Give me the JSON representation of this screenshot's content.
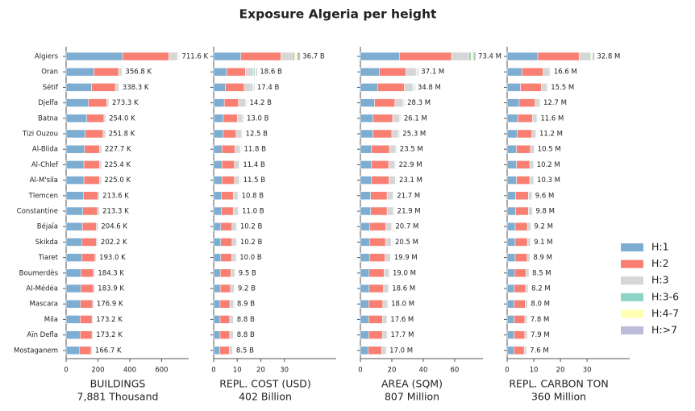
{
  "title": "Exposure Algeria per height",
  "categories": [
    "Algiers",
    "Oran",
    "Sétif",
    "Djelfa",
    "Batna",
    "Tizi Ouzou",
    "Al-Blida",
    "Al-Chlef",
    "Al-M'sila",
    "Tlemcen",
    "Constantine",
    "Béjaïa",
    "Skikda",
    "Tiaret",
    "Boumerdès",
    "Al-Médéa",
    "Mascara",
    "Mila",
    "Aïn Defla",
    "Mostaganem"
  ],
  "series": [
    {
      "name": "H:1",
      "color": "#7eadd2"
    },
    {
      "name": "H:2",
      "color": "#f97f72"
    },
    {
      "name": "H:3",
      "color": "#d6d6d6"
    },
    {
      "name": "H:3-6",
      "color": "#8dd3c7"
    },
    {
      "name": "H:4-7",
      "color": "#ffffb3"
    },
    {
      "name": "H:>7",
      "color": "#bebada"
    }
  ],
  "legend": "right",
  "chart_data": [
    {
      "type": "bar",
      "orientation": "horizontal",
      "xlabel": "BUILDINGS",
      "summary": "7,881 Thousand",
      "xlim": [
        0,
        770
      ],
      "xticks": [
        0,
        200,
        400,
        600
      ],
      "series": [
        {
          "values": [
            355,
            175,
            160,
            140,
            130,
            120,
            115,
            112,
            112,
            108,
            105,
            102,
            100,
            98,
            92,
            92,
            90,
            88,
            88,
            85
          ]
        },
        {
          "values": [
            290,
            155,
            150,
            115,
            108,
            112,
            95,
            98,
            98,
            92,
            92,
            88,
            90,
            84,
            80,
            80,
            76,
            75,
            75,
            72
          ]
        },
        {
          "values": [
            55,
            22,
            22,
            14,
            12,
            16,
            14,
            12,
            12,
            10,
            13,
            12,
            9,
            8,
            9,
            9,
            8,
            7,
            7,
            7
          ]
        },
        {
          "values": [
            4,
            2,
            2.5,
            2,
            2,
            2,
            1.5,
            1.5,
            1.5,
            1.5,
            1.5,
            1.2,
            1.5,
            1.5,
            1.5,
            1.3,
            1.3,
            1.5,
            1.5,
            1.3
          ]
        },
        {
          "values": [
            4,
            2,
            2.5,
            1.5,
            1.5,
            1.3,
            1.5,
            1.4,
            1,
            1.5,
            1.3,
            1,
            1.2,
            1,
            1.3,
            1.1,
            1.1,
            1.2,
            1.2,
            1
          ]
        },
        {
          "values": [
            3.6,
            0.8,
            1.3,
            0.8,
            0.5,
            0.5,
            0.7,
            0.5,
            0.5,
            0.6,
            0.5,
            0.4,
            0.5,
            0.5,
            0.5,
            0.5,
            0.5,
            0.5,
            0.5,
            0.4
          ]
        }
      ],
      "totals": [
        711.6,
        356.8,
        338.3,
        273.3,
        254.0,
        251.8,
        227.7,
        225.4,
        225.0,
        213.6,
        213.3,
        204.6,
        202.2,
        193.0,
        184.3,
        183.9,
        176.9,
        173.2,
        173.2,
        166.7
      ],
      "total_labels": [
        "711.6 K",
        "356.8 K",
        "338.3 K",
        "273.3 K",
        "254.0 K",
        "251.8 K",
        "227.7 K",
        "225.4 K",
        "225.0 K",
        "213.6 K",
        "213.3 K",
        "204.6 K",
        "202.2 K",
        "193.0 K",
        "184.3 K",
        "183.9 K",
        "176.9 K",
        "173.2 K",
        "173.2 K",
        "166.7 K"
      ]
    },
    {
      "type": "bar",
      "orientation": "horizontal",
      "xlabel": "REPL. COST (USD)",
      "summary": "402 Billion",
      "xlim": [
        0,
        52
      ],
      "xticks": [
        0,
        10,
        20,
        30
      ],
      "series": [
        {
          "values": [
            11.5,
            5.5,
            5,
            4.5,
            4,
            4,
            3.5,
            3.5,
            3.5,
            3.3,
            3.3,
            3,
            3,
            3,
            2.8,
            2.8,
            2.7,
            2.7,
            2.7,
            2.6
          ]
        },
        {
          "values": [
            17,
            8,
            8,
            6,
            6,
            5.5,
            5.5,
            5.3,
            5.3,
            5,
            5,
            4.8,
            4.8,
            4.7,
            4.5,
            4.3,
            4.2,
            4.1,
            4.1,
            4
          ]
        },
        {
          "values": [
            5,
            3.5,
            3,
            3,
            2.3,
            2.3,
            2.2,
            2,
            2.1,
            2,
            2.1,
            1.9,
            1.9,
            1.8,
            1.7,
            1.6,
            1.5,
            1.5,
            1.5,
            1.4
          ]
        },
        {
          "values": [
            0.8,
            0.5,
            0.5,
            0.3,
            0.3,
            0.3,
            0.2,
            0.2,
            0.2,
            0.2,
            0.2,
            0.2,
            0.2,
            0.2,
            0.2,
            0.2,
            0.2,
            0.2,
            0.2,
            0.2
          ]
        },
        {
          "values": [
            1.2,
            0.6,
            0.5,
            0.2,
            0.2,
            0.2,
            0.2,
            0.2,
            0.2,
            0.1,
            0.2,
            0.1,
            0.1,
            0.1,
            0.1,
            0.1,
            0.1,
            0.1,
            0.1,
            0.1
          ]
        },
        {
          "values": [
            1.2,
            0.5,
            0.4,
            0.2,
            0.2,
            0.2,
            0.2,
            0.2,
            0.2,
            0.2,
            0.2,
            0.2,
            0.2,
            0.2,
            0.2,
            0.2,
            0.2,
            0.2,
            0.2,
            0.2
          ]
        }
      ],
      "totals": [
        36.7,
        18.6,
        17.4,
        14.2,
        13.0,
        12.5,
        11.8,
        11.4,
        11.5,
        10.8,
        11.0,
        10.2,
        10.2,
        10.0,
        9.5,
        9.2,
        8.9,
        8.8,
        8.8,
        8.5
      ],
      "total_labels": [
        "36.7 B",
        "18.6 B",
        "17.4 B",
        "14.2 B",
        "13.0 B",
        "12.5 B",
        "11.8 B",
        "11.4 B",
        "11.5 B",
        "10.8 B",
        "11.0 B",
        "10.2 B",
        "10.2 B",
        "10.0 B",
        "9.5 B",
        "9.2 B",
        "8.9 B",
        "8.8 B",
        "8.8 B",
        "8.5 B"
      ]
    },
    {
      "type": "bar",
      "orientation": "horizontal",
      "xlabel": "AREA (SQM)",
      "summary": "807 Million",
      "xlim": [
        0,
        78
      ],
      "xticks": [
        0,
        20,
        40,
        60
      ],
      "series": [
        {
          "values": [
            25,
            12,
            11,
            9,
            8,
            8,
            7,
            7,
            7,
            6.5,
            6.5,
            6,
            6,
            6,
            5.5,
            5.5,
            5.3,
            5.2,
            5.3,
            5
          ]
        },
        {
          "values": [
            33,
            17,
            17,
            13,
            12.5,
            12,
            11.5,
            11,
            11.2,
            10.5,
            10.5,
            10.2,
            10,
            9.7,
            9.5,
            9.2,
            9,
            8.8,
            8.8,
            8.5
          ]
        },
        {
          "values": [
            11,
            6,
            5,
            5,
            4.5,
            4.2,
            4,
            4,
            4,
            3.8,
            4,
            3.6,
            3.6,
            3.4,
            3.2,
            3.1,
            3,
            2.9,
            2.9,
            2.8
          ]
        },
        {
          "values": [
            1.4,
            0.7,
            0.6,
            0.5,
            0.4,
            0.4,
            0.4,
            0.3,
            0.3,
            0.3,
            0.3,
            0.3,
            0.3,
            0.3,
            0.3,
            0.3,
            0.2,
            0.2,
            0.2,
            0.2
          ]
        },
        {
          "values": [
            1.5,
            0.7,
            0.6,
            0.4,
            0.3,
            0.3,
            0.3,
            0.3,
            0.3,
            0.3,
            0.3,
            0.3,
            0.3,
            0.2,
            0.2,
            0.2,
            0.2,
            0.2,
            0.2,
            0.2
          ]
        },
        {
          "values": [
            1.5,
            0.7,
            0.6,
            0.4,
            0.4,
            0.4,
            0.3,
            0.3,
            0.3,
            0.3,
            0.3,
            0.3,
            0.3,
            0.3,
            0.3,
            0.3,
            0.3,
            0.3,
            0.3,
            0.3
          ]
        }
      ],
      "totals": [
        73.4,
        37.1,
        34.8,
        28.3,
        26.1,
        25.3,
        23.5,
        22.9,
        23.1,
        21.7,
        21.9,
        20.7,
        20.5,
        19.9,
        19.0,
        18.6,
        18.0,
        17.6,
        17.7,
        17.0
      ],
      "total_labels": [
        "73.4 M",
        "37.1 M",
        "34.8 M",
        "28.3 M",
        "26.1 M",
        "25.3 M",
        "23.5 M",
        "22.9 M",
        "23.1 M",
        "21.7 M",
        "21.9 M",
        "20.7 M",
        "20.5 M",
        "19.9 M",
        "19.0 M",
        "18.6 M",
        "18.0 M",
        "17.6 M",
        "17.7 M",
        "17.0 M"
      ]
    },
    {
      "type": "bar",
      "orientation": "horizontal",
      "xlabel": "REPL. CARBON TON",
      "summary": "360 Million",
      "xlim": [
        0,
        46
      ],
      "xticks": [
        0,
        10,
        20,
        30
      ],
      "series": [
        {
          "values": [
            11.5,
            5.5,
            5,
            4.5,
            4,
            3.8,
            3.5,
            3.5,
            3.5,
            3.2,
            3.2,
            3,
            3,
            3,
            2.8,
            2.7,
            2.7,
            2.6,
            2.6,
            2.5
          ]
        },
        {
          "values": [
            15.5,
            8,
            7.8,
            6,
            5.5,
            5.5,
            5.2,
            5,
            5,
            4.8,
            4.8,
            4.6,
            4.6,
            4.5,
            4.3,
            4.2,
            4.1,
            4,
            4,
            3.9
          ]
        },
        {
          "values": [
            3.7,
            2.3,
            2,
            1.8,
            1.7,
            1.5,
            1.5,
            1.4,
            1.5,
            1.3,
            1.5,
            1.3,
            1.2,
            1.1,
            1.1,
            1,
            0.9,
            0.9,
            1,
            0.9
          ]
        },
        {
          "values": [
            0.6,
            0.3,
            0.3,
            0.2,
            0.2,
            0.2,
            0.1,
            0.1,
            0.1,
            0.1,
            0.1,
            0.1,
            0.1,
            0.1,
            0.1,
            0.1,
            0.1,
            0.1,
            0.1,
            0.1
          ]
        },
        {
          "values": [
            0.8,
            0.3,
            0.2,
            0.1,
            0.1,
            0.1,
            0.1,
            0.1,
            0.1,
            0.1,
            0.1,
            0.1,
            0.1,
            0.1,
            0.1,
            0.1,
            0.1,
            0.1,
            0.1,
            0.1
          ]
        },
        {
          "values": [
            0.7,
            0.2,
            0.2,
            0.1,
            0.1,
            0.1,
            0.1,
            0.1,
            0.1,
            0.1,
            0.1,
            0.1,
            0.1,
            0.1,
            0.1,
            0.1,
            0.1,
            0.1,
            0.1,
            0.1
          ]
        }
      ],
      "totals": [
        32.8,
        16.6,
        15.5,
        12.7,
        11.6,
        11.2,
        10.5,
        10.2,
        10.3,
        9.6,
        9.8,
        9.2,
        9.1,
        8.9,
        8.5,
        8.2,
        8.0,
        7.8,
        7.9,
        7.6
      ],
      "total_labels": [
        "32.8 M",
        "16.6 M",
        "15.5 M",
        "12.7 M",
        "11.6 M",
        "11.2 M",
        "10.5 M",
        "10.2 M",
        "10.3 M",
        "9.6 M",
        "9.8 M",
        "9.2 M",
        "9.1 M",
        "8.9 M",
        "8.5 M",
        "8.2 M",
        "8.0 M",
        "7.8 M",
        "7.9 M",
        "7.6 M"
      ]
    }
  ]
}
